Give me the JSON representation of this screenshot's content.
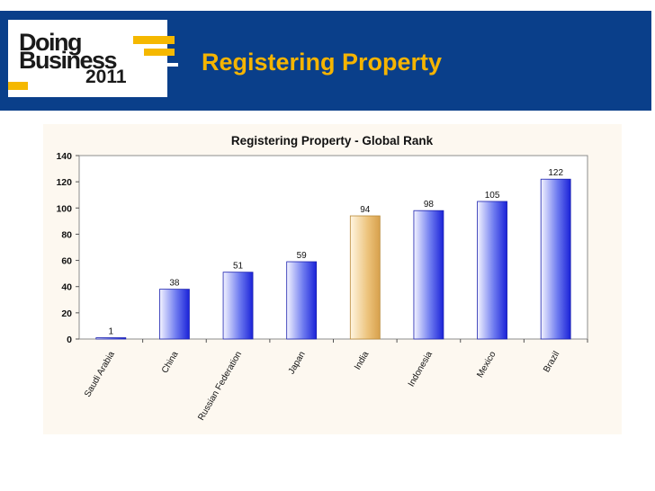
{
  "header": {
    "logo_line1": "Doing",
    "logo_line2": "Business",
    "logo_year": "2011",
    "title": "Registering Property"
  },
  "colors": {
    "banner": "#0a3f8a",
    "accent": "#f5b400",
    "bar": "#1f2fd6",
    "highlight_bar": "#e3b25a"
  },
  "chart_data": {
    "type": "bar",
    "title": "Registering Property - Global Rank",
    "categories": [
      "Saudi Arabia",
      "China",
      "Russian Federation",
      "Japan",
      "India",
      "Indonesia",
      "Mexico",
      "Brazil"
    ],
    "values": [
      1,
      38,
      51,
      59,
      94,
      98,
      105,
      122
    ],
    "value_labels": [
      "1",
      "38",
      "51",
      "59",
      "94",
      "98",
      "105",
      "122"
    ],
    "highlight": "India",
    "ylim": [
      0,
      140
    ],
    "yticks": [
      "0",
      "20",
      "40",
      "60",
      "80",
      "100",
      "120",
      "140"
    ],
    "xlabel": "",
    "ylabel": "",
    "grid": false,
    "legend": "none"
  }
}
